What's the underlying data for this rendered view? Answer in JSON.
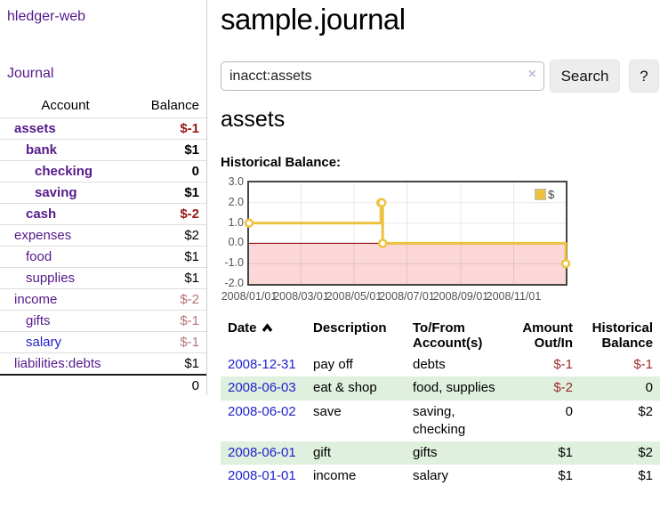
{
  "app": {
    "brand": "hledger-web"
  },
  "sidebar": {
    "journal_link": "Journal",
    "accounts_table": {
      "headers": {
        "account": "Account",
        "balance": "Balance"
      },
      "rows": [
        {
          "account": "assets",
          "balance": "$-1",
          "depth": 1,
          "bold": true,
          "amount_style": "negative-strong"
        },
        {
          "account": "bank",
          "balance": "$1",
          "depth": 2,
          "bold": true,
          "amount_style": "normal"
        },
        {
          "account": "checking",
          "balance": "0",
          "depth": 3,
          "bold": true,
          "amount_style": "normal"
        },
        {
          "account": "saving",
          "balance": "$1",
          "depth": 3,
          "bold": true,
          "amount_style": "normal"
        },
        {
          "account": "cash",
          "balance": "$-2",
          "depth": 2,
          "bold": true,
          "amount_style": "negative-strong"
        },
        {
          "account": "expenses",
          "balance": "$2",
          "depth": 1,
          "bold": false,
          "amount_style": "normal"
        },
        {
          "account": "food",
          "balance": "$1",
          "depth": 2,
          "bold": false,
          "amount_style": "normal"
        },
        {
          "account": "supplies",
          "balance": "$1",
          "depth": 2,
          "bold": false,
          "amount_style": "normal"
        },
        {
          "account": "income",
          "balance": "$-2",
          "depth": 1,
          "bold": false,
          "amount_style": "negative-soft"
        },
        {
          "account": "gifts",
          "balance": "$-1",
          "depth": 2,
          "bold": false,
          "amount_style": "negative-soft"
        },
        {
          "account": "salary",
          "balance": "$-1",
          "depth": 2,
          "bold": false,
          "amount_style": "negative-soft",
          "link_style": "unvisited"
        },
        {
          "account": "liabilities:debts",
          "balance": "$1",
          "depth": 1,
          "bold": false,
          "amount_style": "normal"
        }
      ],
      "total": "0"
    }
  },
  "main": {
    "title": "sample.journal",
    "search": {
      "value": "inacct:assets",
      "clear_label": "×",
      "search_button": "Search",
      "help_button": "?"
    },
    "section_heading": "assets",
    "chart_title": "Historical Balance:"
  },
  "chart_data": {
    "type": "line",
    "line_style": "step",
    "title": "Historical Balance",
    "legend": [
      {
        "label": "$",
        "color": "#edc240"
      }
    ],
    "legend_position": "top-right",
    "xlim": [
      "2008-01-01",
      "2008-12-31"
    ],
    "ylim": [
      -2.0,
      3.0
    ],
    "yticks": [
      3.0,
      2.0,
      1.0,
      0.0,
      -1.0,
      -2.0
    ],
    "xticks": [
      {
        "label": "2008/01/01",
        "date": "2008-01-01"
      },
      {
        "label": "2008/03/01",
        "date": "2008-03-01"
      },
      {
        "label": "2008/05/01",
        "date": "2008-05-01"
      },
      {
        "label": "2008/07/01",
        "date": "2008-07-01"
      },
      {
        "label": "2008/09/01",
        "date": "2008-09-01"
      },
      {
        "label": "2008/11/01",
        "date": "2008-11-01"
      }
    ],
    "series": [
      {
        "name": "$",
        "color": "#edc240",
        "points": [
          {
            "date": "2008-01-01",
            "value": 1.0
          },
          {
            "date": "2008-06-01",
            "value": 2.0
          },
          {
            "date": "2008-06-02",
            "value": 2.0
          },
          {
            "date": "2008-06-03",
            "value": 0.0
          },
          {
            "date": "2008-12-31",
            "value": -1.0
          }
        ]
      }
    ],
    "grid": true,
    "zero_line_color": "#8b0000",
    "negative_region_color": "#fbd7d7"
  },
  "register": {
    "headers": {
      "date": "Date",
      "description": "Description",
      "accounts": "To/From Account(s)",
      "amount": "Amount Out/In",
      "balance": "Historical Balance"
    },
    "rows": [
      {
        "date": "2008-12-31",
        "description": "pay off",
        "accounts": "debts",
        "amount": "$-1",
        "amount_negative": true,
        "balance": "$-1",
        "balance_negative": true
      },
      {
        "date": "2008-06-03",
        "description": "eat & shop",
        "accounts": "food, supplies",
        "amount": "$-2",
        "amount_negative": true,
        "balance": "0",
        "balance_negative": false
      },
      {
        "date": "2008-06-02",
        "description": "save",
        "accounts": "saving, checking",
        "amount": "0",
        "amount_negative": false,
        "balance": "$2",
        "balance_negative": false
      },
      {
        "date": "2008-06-01",
        "description": "gift",
        "accounts": "gifts",
        "amount": "$1",
        "amount_negative": false,
        "balance": "$2",
        "balance_negative": false
      },
      {
        "date": "2008-01-01",
        "description": "income",
        "accounts": "salary",
        "amount": "$1",
        "amount_negative": false,
        "balance": "$1",
        "balance_negative": false
      }
    ]
  },
  "colors": {
    "link_purple": "#551a8b",
    "link_blue": "#2222cc",
    "negative_strong": "#971616",
    "negative_soft": "#b57474",
    "row_stripe_green": "#dff0de",
    "series_gold": "#edc240"
  }
}
